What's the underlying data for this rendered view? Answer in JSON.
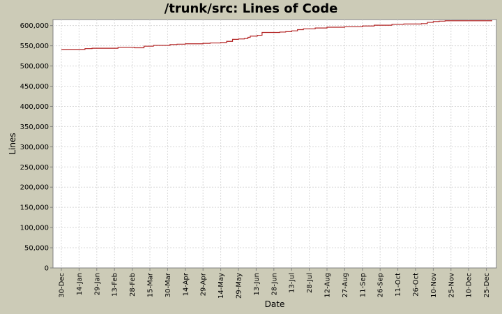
{
  "chart_data": {
    "type": "line",
    "title": "/trunk/src: Lines of Code",
    "xlabel": "Date",
    "ylabel": "Lines",
    "ylim": [
      0,
      615000
    ],
    "grid": true,
    "legend": "none",
    "x_tick_labels": [
      "30-Dec",
      "14-Jan",
      "29-Jan",
      "13-Feb",
      "28-Feb",
      "15-Mar",
      "30-Mar",
      "14-Apr",
      "29-Apr",
      "14-May",
      "29-May",
      "13-Jun",
      "28-Jun",
      "13-Jul",
      "28-Jul",
      "12-Aug",
      "27-Aug",
      "11-Sep",
      "26-Sep",
      "11-Oct",
      "26-Oct",
      "10-Nov",
      "25-Nov",
      "10-Dec",
      "25-Dec"
    ],
    "y_ticks": [
      0,
      50000,
      100000,
      150000,
      200000,
      250000,
      300000,
      350000,
      400000,
      450000,
      500000,
      550000,
      600000
    ],
    "y_tick_labels": [
      "0",
      "50,000",
      "100,000",
      "150,000",
      "200,000",
      "250,000",
      "300,000",
      "350,000",
      "400,000",
      "450,000",
      "500,000",
      "550,000",
      "600,000"
    ],
    "series": [
      {
        "color": "#b22222",
        "x": [
          0,
          4,
          5,
          15,
          20,
          26,
          32,
          35,
          40,
          43,
          48,
          53,
          58,
          62,
          70,
          75,
          78,
          85,
          92,
          98,
          105,
          110,
          115,
          120,
          126,
          130,
          135,
          140,
          145,
          150,
          155,
          158,
          160,
          162,
          164,
          166,
          168,
          170,
          172,
          176,
          180,
          182,
          185,
          190,
          195,
          200,
          205,
          210,
          215,
          220,
          225,
          230,
          240,
          255,
          265,
          270,
          280,
          290,
          295,
          300,
          305,
          310,
          315,
          320,
          325,
          330,
          335,
          338,
          342,
          348,
          355,
          365
        ],
        "y": [
          541000,
          541000,
          541000,
          541000,
          543000,
          544000,
          544000,
          544000,
          544000,
          544000,
          546000,
          546000,
          546000,
          545000,
          549000,
          549000,
          551000,
          551000,
          553000,
          554000,
          555000,
          555000,
          555000,
          556000,
          557000,
          557000,
          558000,
          561000,
          566000,
          567000,
          568000,
          571000,
          574000,
          574000,
          574000,
          576000,
          576000,
          583000,
          583000,
          583000,
          583000,
          583000,
          584000,
          585000,
          587000,
          590000,
          592000,
          592000,
          594000,
          594000,
          596000,
          596000,
          597000,
          599000,
          601000,
          601000,
          603000,
          604000,
          604000,
          604000,
          605000,
          608000,
          610000,
          611000,
          612000,
          612000,
          612000,
          612000,
          612000,
          612000,
          612000,
          612000
        ]
      }
    ]
  }
}
